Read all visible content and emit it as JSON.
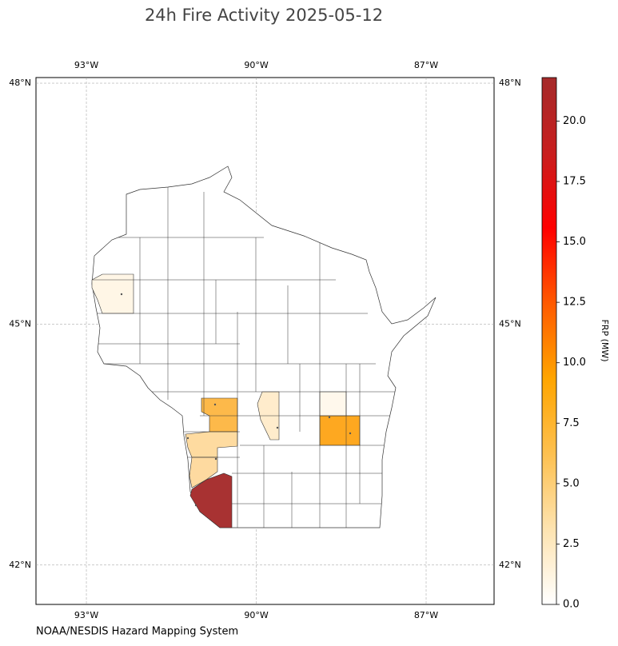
{
  "chart_data": {
    "type": "choropleth",
    "title": "24h Fire Activity 2025-05-12",
    "source": "NOAA/NESDIS Hazard Mapping System",
    "xlim": [
      -93.89,
      -85.8
    ],
    "ylim": [
      41.51,
      48.07
    ],
    "xticks": [
      {
        "value": -93,
        "label": "93°W"
      },
      {
        "value": -90,
        "label": "90°W"
      },
      {
        "value": -87,
        "label": "87°W"
      }
    ],
    "yticks": [
      {
        "value": 42,
        "label": "42°N"
      },
      {
        "value": 45,
        "label": "45°N"
      },
      {
        "value": 48,
        "label": "48°N"
      }
    ],
    "grid": true,
    "values": [
      0.4,
      5.5,
      1.5,
      7.2,
      0.3,
      2.7,
      2.9,
      21.5
    ],
    "colors": [
      "#fff6e6",
      "#fdb94a",
      "#ffeccc",
      "#fea820",
      "#fff8ec",
      "#fedba0",
      "#fedaa0",
      "#a83232"
    ],
    "colorbar": {
      "label": "FRP (MW)",
      "lim": [
        0,
        21.8
      ],
      "ticks": [
        {
          "value": 0,
          "label": "0.0"
        },
        2.5,
        {
          "value": 5,
          "label": "5.0"
        },
        7.5,
        {
          "value": 10,
          "label": "10.0"
        },
        12.5,
        {
          "value": 15,
          "label": "15.0"
        },
        17.5,
        {
          "value": 20,
          "label": "20.0"
        }
      ],
      "colors": [
        "#ffffff",
        "#fde3b0",
        "#fdc050",
        "#ffa500",
        "#ff5a00",
        "#ff0000",
        "#c81e1e",
        "#a52a2a"
      ]
    }
  }
}
